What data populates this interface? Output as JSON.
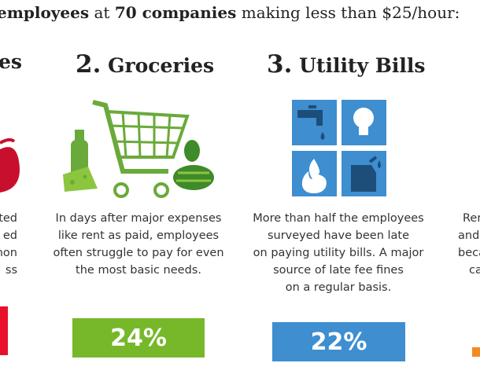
{
  "header": {
    "parts": [
      "employees",
      " at ",
      "70 companies",
      " making less than $25/hour:"
    ]
  },
  "left_column": {
    "heading": "es",
    "lines": [
      "ted",
      "ed",
      "non",
      "ss"
    ]
  },
  "groceries": {
    "number": "2.",
    "title": "Groceries",
    "lines": [
      "In days after major expenses",
      "like rent as paid, employees",
      "often struggle to pay for even",
      "the most basic needs."
    ],
    "stat": "24%"
  },
  "utility": {
    "number": "3.",
    "title": "Utility Bills",
    "lines": [
      "More than half the employees",
      "surveyed have been late",
      "on paying utility bills. A major",
      "source of late fee fines",
      "on a regular basis."
    ],
    "stat": "22%"
  },
  "right_column": {
    "lines": [
      "Ren",
      "and",
      "beca",
      "ca"
    ]
  }
}
